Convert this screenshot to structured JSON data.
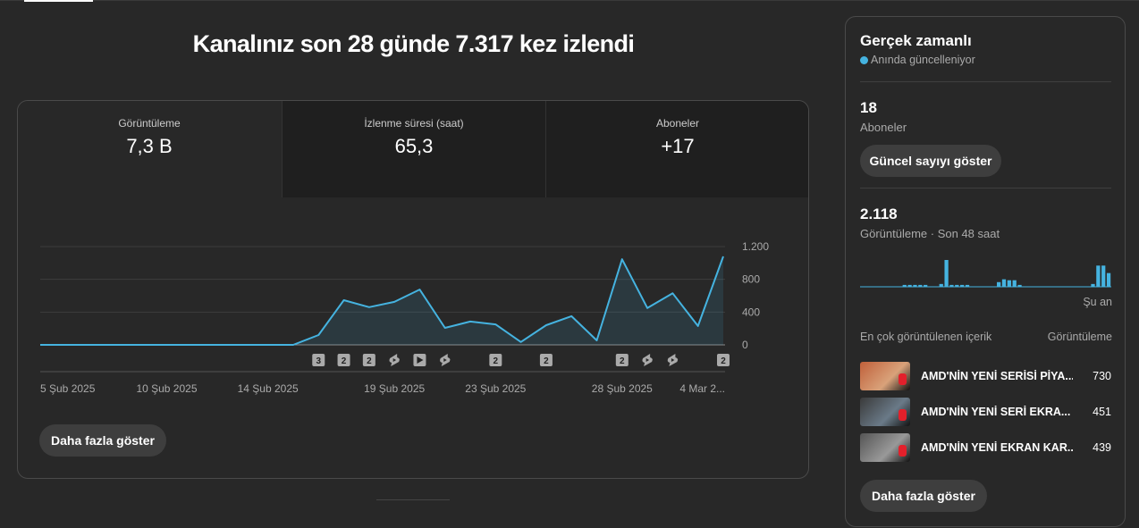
{
  "header": {
    "title": "Kanalınız son 28 günde 7.317 kez izlendi"
  },
  "metrics": [
    {
      "label": "Görüntüleme",
      "value": "7,3 B"
    },
    {
      "label": "İzlenme süresi (saat)",
      "value": "65,3"
    },
    {
      "label": "Aboneler",
      "value": "+17"
    }
  ],
  "chart_data": {
    "type": "line",
    "categories": [
      "5 Şub 2025",
      null,
      null,
      null,
      null,
      "10 Şub 2025",
      null,
      null,
      null,
      "14 Şub 2025",
      null,
      null,
      null,
      null,
      "19 Şub 2025",
      null,
      null,
      null,
      "23 Şub 2025",
      null,
      null,
      null,
      null,
      "28 Şub 2025",
      null,
      null,
      null,
      "4 Mar 2..."
    ],
    "values": [
      0,
      0,
      0,
      0,
      0,
      0,
      0,
      0,
      0,
      0,
      0,
      120,
      545,
      460,
      525,
      675,
      207,
      285,
      250,
      35,
      240,
      350,
      55,
      1045,
      450,
      630,
      230,
      1080
    ],
    "color": "#45b3e0",
    "ylim": [
      0,
      1200
    ],
    "yticks": [
      0,
      400,
      800,
      {
        "value": 1200,
        "label": "1.200"
      }
    ],
    "grid": true,
    "markers": [
      {
        "index": 11,
        "label": "3"
      },
      {
        "index": 12,
        "label": "2"
      },
      {
        "index": 13,
        "label": "2"
      },
      {
        "index": 14,
        "icon": "short"
      },
      {
        "index": 15,
        "icon": "video"
      },
      {
        "index": 16,
        "icon": "short"
      },
      {
        "index": 18,
        "label": "2"
      },
      {
        "index": 20,
        "label": "2"
      },
      {
        "index": 23,
        "label": "2"
      },
      {
        "index": 24,
        "icon": "short"
      },
      {
        "index": 25,
        "icon": "short"
      },
      {
        "index": 27,
        "label": "2"
      }
    ]
  },
  "more_button": "Daha fazla göster",
  "realtime": {
    "title": "Gerçek zamanlı",
    "status": "Anında güncelleniyor",
    "subscribers": {
      "value": "18",
      "label": "Aboneler"
    },
    "button": "Güncel sayıyı göster",
    "views": {
      "value": "2.118",
      "label": "Görüntüleme · Son 48 saat"
    },
    "hourly": {
      "values": [
        0,
        0,
        0,
        0,
        0,
        0,
        0,
        0,
        30,
        30,
        30,
        30,
        30,
        0,
        0,
        45,
        430,
        30,
        30,
        30,
        30,
        0,
        0,
        0,
        0,
        0,
        75,
        120,
        105,
        105,
        30,
        0,
        0,
        0,
        0,
        0,
        0,
        0,
        0,
        0,
        0,
        0,
        0,
        0,
        45,
        340,
        340,
        220
      ],
      "color": "#45b3e0",
      "end_label": "Şu an"
    },
    "top": {
      "heading": "En çok görüntülenen içerik",
      "metric": "Görüntüleme",
      "items": [
        {
          "title": "AMD'NİN YENİ SERİSİ PİYA...",
          "views": 730
        },
        {
          "title": "AMD'NİN YENİ SERİ EKRA...",
          "views": 451
        },
        {
          "title": "AMD'NİN YENİ EKRAN KAR...",
          "views": 439
        }
      ]
    },
    "more_button": "Daha fazla göster"
  }
}
